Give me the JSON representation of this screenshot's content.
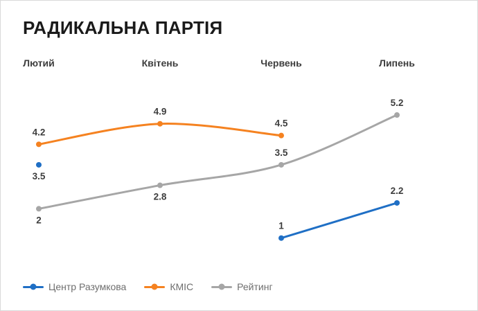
{
  "title": "РАДИКАЛЬНА ПАРТІЯ",
  "chart_data": {
    "type": "line",
    "categories": [
      "Лютий",
      "Квітень",
      "Червень",
      "Липень"
    ],
    "series": [
      {
        "name": "Центр Разумкова",
        "color": "#1f6fc5",
        "values": [
          3.5,
          null,
          1,
          2.2
        ],
        "label_positions": [
          "below",
          null,
          "above",
          "above"
        ]
      },
      {
        "name": "КМІС",
        "color": "#f58220",
        "values": [
          4.2,
          4.9,
          4.5,
          null
        ],
        "label_positions": [
          "above",
          "above",
          "above",
          null
        ]
      },
      {
        "name": "Рейтинг",
        "color": "#a6a6a6",
        "values": [
          2,
          2.8,
          3.5,
          5.2
        ],
        "label_positions": [
          "below",
          "below",
          "above",
          "above"
        ]
      }
    ],
    "ylim": [
      0,
      6
    ],
    "grid": false,
    "legend_position": "bottom",
    "x_axis_position": "top"
  },
  "legend": {
    "items": [
      "Центр Разумкова",
      "КМІС",
      "Рейтинг"
    ]
  }
}
